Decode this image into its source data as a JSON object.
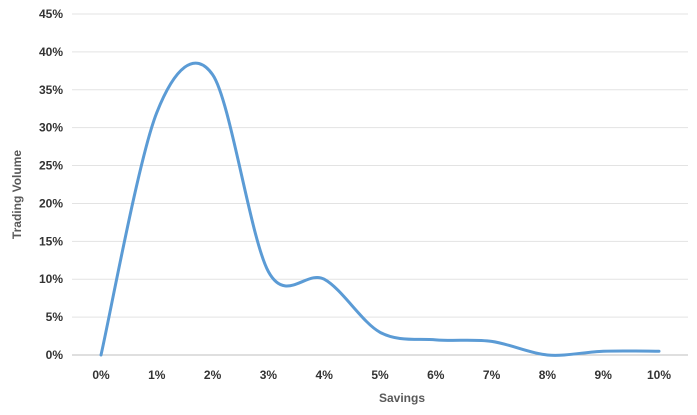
{
  "chart_data": {
    "type": "line",
    "title": "",
    "xlabel": "Savings",
    "ylabel": "Trading Volume",
    "x_ticks": [
      "0%",
      "1%",
      "2%",
      "3%",
      "4%",
      "5%",
      "6%",
      "7%",
      "8%",
      "9%",
      "10%"
    ],
    "y_ticks": [
      "0%",
      "5%",
      "10%",
      "15%",
      "20%",
      "25%",
      "30%",
      "35%",
      "40%",
      "45%"
    ],
    "xlim": [
      0,
      10
    ],
    "ylim": [
      0,
      45
    ],
    "grid": true,
    "legend": "none",
    "series": [
      {
        "color": "#5b9bd5",
        "smooth": true,
        "x": [
          0,
          1,
          2,
          3,
          4,
          5,
          6,
          7,
          8,
          9,
          10
        ],
        "y": [
          0,
          32,
          37,
          11,
          10,
          3,
          2,
          1.8,
          0,
          0.5,
          0.5
        ]
      }
    ]
  }
}
